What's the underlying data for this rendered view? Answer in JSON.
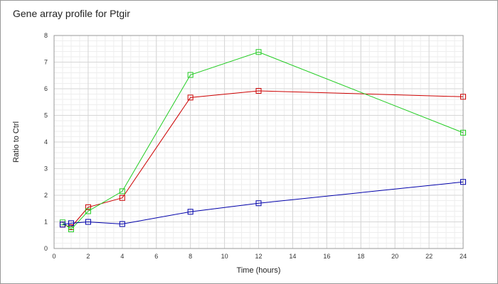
{
  "chart_data": {
    "type": "line",
    "title": "Gene array profile for Ptgir",
    "xlabel": "Time (hours)",
    "ylabel": "Ratio to Ctrl",
    "xlim": [
      0,
      24
    ],
    "ylim": [
      0,
      8
    ],
    "xticks": [
      0,
      2,
      4,
      6,
      8,
      10,
      12,
      14,
      16,
      18,
      20,
      22,
      24
    ],
    "yticks": [
      0,
      1,
      2,
      3,
      4,
      5,
      6,
      7,
      8
    ],
    "grid": true,
    "marker": "open-square",
    "series": [
      {
        "color": "#cc0000",
        "x": [
          0.5,
          1,
          2,
          4,
          8,
          12,
          24
        ],
        "y": [
          0.9,
          0.8,
          1.55,
          1.9,
          5.67,
          5.92,
          5.7
        ]
      },
      {
        "color": "#22cc22",
        "x": [
          0.5,
          1,
          2,
          4,
          8,
          12,
          24
        ],
        "y": [
          0.98,
          0.72,
          1.4,
          2.15,
          6.52,
          7.38,
          4.35
        ]
      },
      {
        "color": "#0000aa",
        "x": [
          0.5,
          1,
          2,
          4,
          8,
          12,
          24
        ],
        "y": [
          0.9,
          0.95,
          1.0,
          0.92,
          1.38,
          1.7,
          2.5
        ]
      }
    ]
  }
}
